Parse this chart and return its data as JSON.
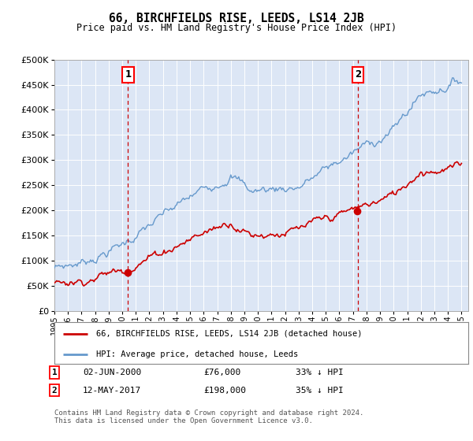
{
  "title": "66, BIRCHFIELDS RISE, LEEDS, LS14 2JB",
  "subtitle": "Price paid vs. HM Land Registry's House Price Index (HPI)",
  "background_color": "#dce6f5",
  "plot_bg_color": "#dce6f5",
  "hpi_color": "#6699cc",
  "price_color": "#cc0000",
  "vline_color": "#cc0000",
  "ylim": [
    0,
    500000
  ],
  "yticks": [
    0,
    50000,
    100000,
    150000,
    200000,
    250000,
    300000,
    350000,
    400000,
    450000,
    500000
  ],
  "sale1_year": 2000.42,
  "sale1_price": 76000,
  "sale2_year": 2017.36,
  "sale2_price": 198000,
  "legend_line1": "66, BIRCHFIELDS RISE, LEEDS, LS14 2JB (detached house)",
  "legend_line2": "HPI: Average price, detached house, Leeds",
  "annotation1_date": "02-JUN-2000",
  "annotation1_price": "£76,000",
  "annotation1_pct": "33% ↓ HPI",
  "annotation2_date": "12-MAY-2017",
  "annotation2_price": "£198,000",
  "annotation2_pct": "35% ↓ HPI",
  "footer": "Contains HM Land Registry data © Crown copyright and database right 2024.\nThis data is licensed under the Open Government Licence v3.0."
}
